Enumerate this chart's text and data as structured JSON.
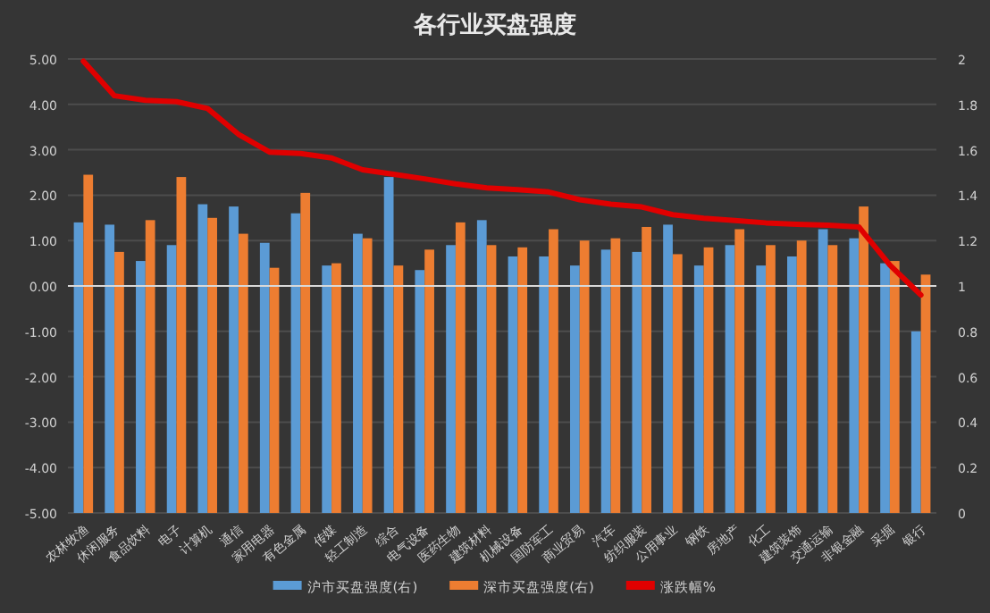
{
  "chart_data": {
    "type": "bar",
    "title": "各行业买盘强度",
    "categories": [
      "农林牧渔",
      "休闲服务",
      "食品饮料",
      "电子",
      "计算机",
      "通信",
      "家用电器",
      "有色金属",
      "传媒",
      "轻工制造",
      "综合",
      "电气设备",
      "医药生物",
      "建筑材料",
      "机械设备",
      "国防军工",
      "商业贸易",
      "汽车",
      "纺织服装",
      "公用事业",
      "钢铁",
      "房地产",
      "化工",
      "建筑装饰",
      "交通运输",
      "非银金融",
      "采掘",
      "银行"
    ],
    "series": [
      {
        "name": "沪市买盘强度(右)",
        "color": "#5b9bd5",
        "axis": "y2",
        "values": [
          1.28,
          1.27,
          1.11,
          1.18,
          1.36,
          1.35,
          1.19,
          1.32,
          1.09,
          1.23,
          1.48,
          1.07,
          1.18,
          1.29,
          1.13,
          1.13,
          1.09,
          1.16,
          1.15,
          1.27,
          1.09,
          1.18,
          1.09,
          1.13,
          1.25,
          1.21,
          1.1,
          0.8
        ]
      },
      {
        "name": "深市买盘强度(右)",
        "color": "#ed7d31",
        "axis": "y2",
        "values": [
          1.49,
          1.15,
          1.29,
          1.48,
          1.3,
          1.23,
          1.08,
          1.41,
          1.1,
          1.21,
          1.09,
          1.16,
          1.28,
          1.18,
          1.17,
          1.25,
          1.2,
          1.21,
          1.26,
          1.14,
          1.17,
          1.25,
          1.18,
          1.2,
          1.18,
          1.35,
          1.11,
          1.05
        ]
      },
      {
        "name": "涨跌幅%",
        "color": "#e00000",
        "type": "line",
        "axis": "y",
        "values": [
          4.95,
          4.19,
          4.09,
          4.06,
          3.91,
          3.34,
          2.95,
          2.92,
          2.82,
          2.56,
          2.46,
          2.36,
          2.25,
          2.16,
          2.12,
          2.07,
          1.9,
          1.8,
          1.74,
          1.57,
          1.49,
          1.44,
          1.39,
          1.36,
          1.34,
          1.3,
          0.46,
          -0.2
        ]
      }
    ],
    "ylim": [
      -5,
      5
    ],
    "yticks": [
      {
        "value": 5,
        "label": "5.00"
      },
      {
        "value": 4,
        "label": "4.00"
      },
      {
        "value": 3,
        "label": "3.00"
      },
      {
        "value": 2,
        "label": "2.00"
      },
      {
        "value": 1,
        "label": "1.00"
      },
      {
        "value": 0,
        "label": "0.00"
      },
      {
        "value": -1,
        "label": "-1.00"
      },
      {
        "value": -2,
        "label": "-2.00"
      },
      {
        "value": -3,
        "label": "-3.00"
      },
      {
        "value": -4,
        "label": "-4.00"
      },
      {
        "value": -5,
        "label": "-5.00"
      }
    ],
    "y2lim": [
      0,
      2
    ],
    "y2ticks": [
      0,
      0.2,
      0.4,
      0.6,
      0.8,
      1,
      1.2,
      1.4,
      1.6,
      1.8,
      2
    ],
    "grid": "y",
    "legend": "bottom",
    "marker": "none",
    "line_style": "solid"
  }
}
